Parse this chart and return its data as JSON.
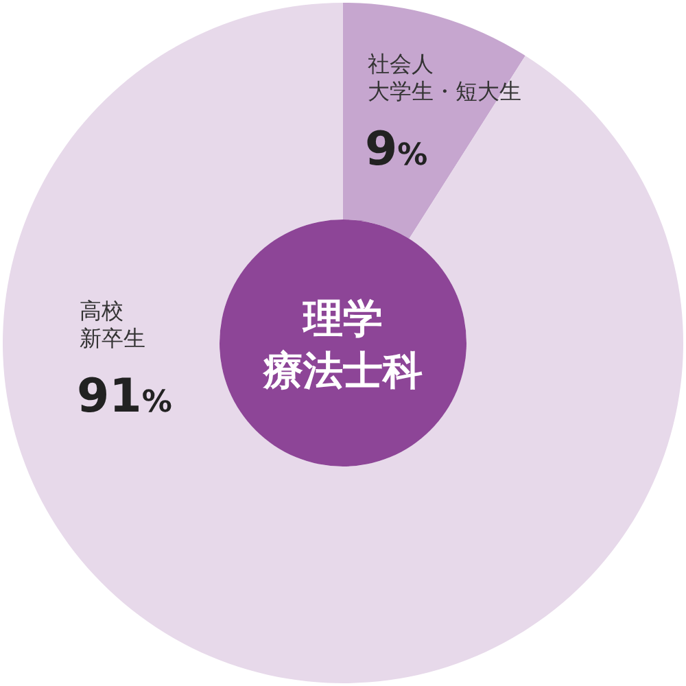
{
  "chart_data": {
    "type": "donut",
    "title": "理学療法士科",
    "categories": [
      "社会人大学生・短大生",
      "高校新卒生"
    ],
    "values": [
      9,
      91
    ],
    "value_labels": [
      "9%",
      "91%"
    ],
    "colors": [
      "#c6a6cf",
      "#e7d9ea"
    ]
  }
}
